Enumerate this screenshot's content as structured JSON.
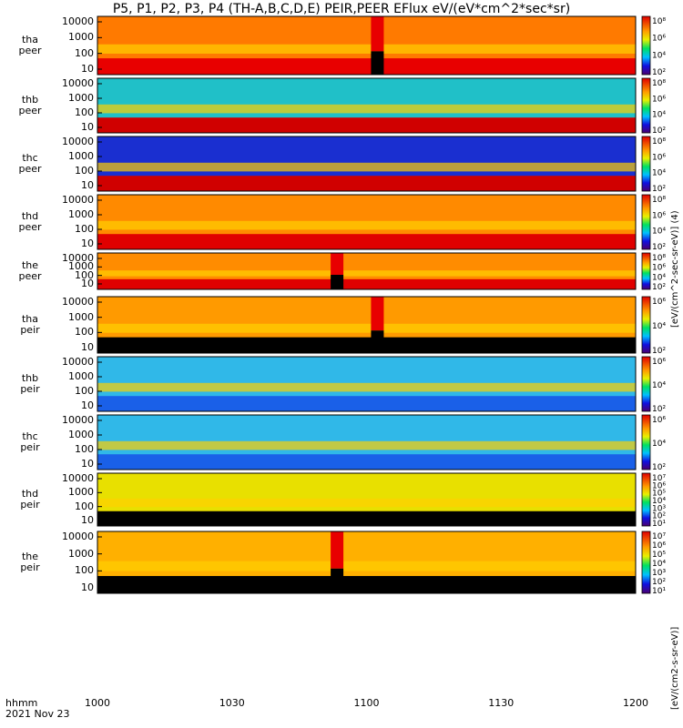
{
  "title": "P5, P1, P2, P3, P4 (TH-A,B,C,D,E) PEIR,PEER EFlux eV/(eV*cm^2*sec*sr)",
  "colorbar_unit_top": "[eV/(cm^2-sec-sr-eV)] (4)",
  "colorbar_unit_bottom": "[eV/(cm2-s-sr-eV)]",
  "xaxis": {
    "labels": [
      "1000",
      "1030",
      "1100",
      "1130",
      "1200"
    ],
    "corner": [
      "hhmm",
      "2021 Nov 23"
    ]
  },
  "chart_data": {
    "type": "heatmap",
    "x_range": [
      "10:00",
      "12:00"
    ],
    "y_scale": "log",
    "y_ticks": [
      "10000",
      "1000",
      "100",
      "10"
    ],
    "panels": [
      {
        "probe": "tha",
        "species": "peer",
        "cbar": [
          "10⁸",
          "10⁶",
          "10⁴",
          "10²"
        ],
        "gap_at": "11:01",
        "bg": "#ff7a00",
        "bottom_band": "#e80000"
      },
      {
        "probe": "thb",
        "species": "peer",
        "cbar": [
          "10⁸",
          "10⁶",
          "10⁴",
          "10²"
        ],
        "bg": "#20c0c8",
        "bottom_band": "#d00000"
      },
      {
        "probe": "thc",
        "species": "peer",
        "cbar": [
          "10⁸",
          "10⁶",
          "10⁴",
          "10²"
        ],
        "bg": "#1a2fd0",
        "bottom_band": "#d00000"
      },
      {
        "probe": "thd",
        "species": "peer",
        "cbar": [
          "10⁸",
          "10⁶",
          "10⁴",
          "10²"
        ],
        "bg": "#ff8a00",
        "bottom_band": "#e00000"
      },
      {
        "probe": "the",
        "species": "peer",
        "cbar": [
          "10⁸",
          "10⁶",
          "10⁴",
          "10²"
        ],
        "gap_at": "10:52",
        "bg": "#ff8c00",
        "bottom_band": "#e00000"
      },
      {
        "probe": "tha",
        "species": "peir",
        "cbar": [
          "10⁶",
          "10⁴",
          "10²"
        ],
        "gap_at": "11:01",
        "bg": "#ff9a00",
        "bottom_band": "#000000"
      },
      {
        "probe": "thb",
        "species": "peir",
        "cbar": [
          "10⁶",
          "10⁴",
          "10²"
        ],
        "bg": "#30b8e8",
        "bottom_band": "#1a60e8"
      },
      {
        "probe": "thc",
        "species": "peir",
        "cbar": [
          "10⁶",
          "10⁴",
          "10²"
        ],
        "bg": "#30b8e8",
        "bottom_band": "#1a60e8"
      },
      {
        "probe": "thd",
        "species": "peir",
        "cbar": [
          "10⁷",
          "10⁶",
          "10⁵",
          "10⁴",
          "10³",
          "10²",
          "10¹"
        ],
        "bg": "#e8e000",
        "bottom_band": "#000000"
      },
      {
        "probe": "the",
        "species": "peir",
        "cbar": [
          "10⁷",
          "10⁶",
          "10⁵",
          "10⁴",
          "10³",
          "10²",
          "10¹"
        ],
        "gap_at": "10:52",
        "bg": "#ffb000",
        "bottom_band": "#000000"
      }
    ]
  }
}
